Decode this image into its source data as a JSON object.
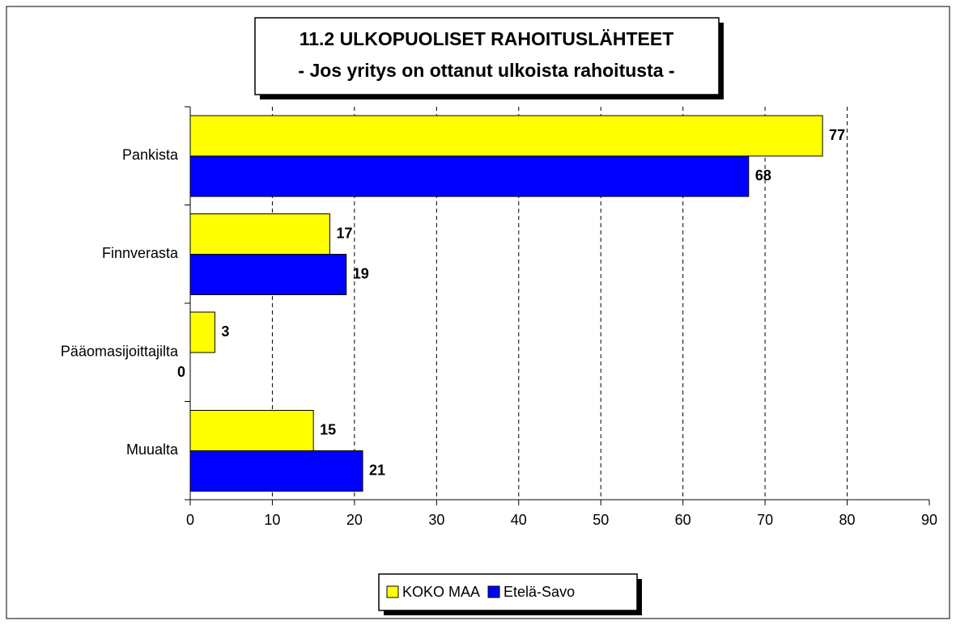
{
  "chart_data": {
    "type": "hbar",
    "title": "11.2 ULKOPUOLISET RAHOITUSLÄHTEET",
    "subtitle": "- Jos yritys on ottanut ulkoista rahoitusta -",
    "categories": [
      "Pankista",
      "Finnverasta",
      "Pääomasijoittajilta",
      "Muualta"
    ],
    "series": [
      {
        "name": "KOKO MAA",
        "color": "#ffff00",
        "values": [
          77,
          17,
          3,
          15
        ]
      },
      {
        "name": "Etelä-Savo",
        "color": "#0000ff",
        "values": [
          68,
          19,
          0,
          21
        ]
      }
    ],
    "xlim": [
      0,
      90
    ],
    "xticks": [
      0,
      10,
      20,
      30,
      40,
      50,
      60,
      70,
      80,
      90
    ],
    "grid": true,
    "legend": "bottom"
  }
}
